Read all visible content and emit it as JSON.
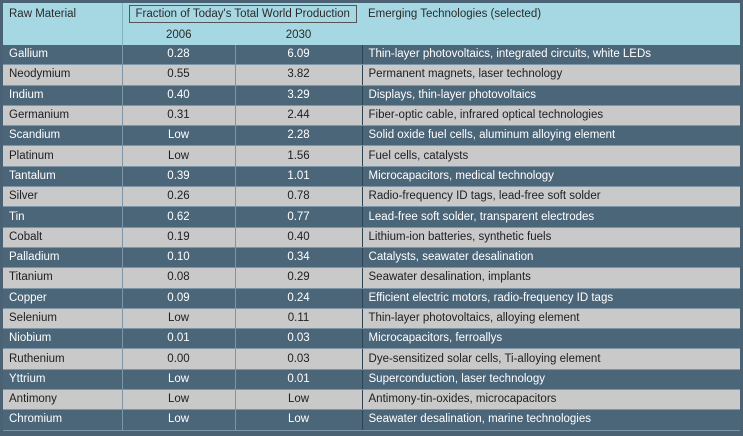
{
  "header": {
    "col_material": "Raw Material",
    "col_fraction": "Fraction of Today's Total World Production",
    "col_tech": "Emerging Technologies (selected)",
    "year_a": "2006",
    "year_b": "2030"
  },
  "rows": [
    {
      "material": "Gallium",
      "y2006": "0.28",
      "y2030": "6.09",
      "tech": "Thin-layer photovoltaics, integrated circuits, white LEDs"
    },
    {
      "material": "Neodymium",
      "y2006": "0.55",
      "y2030": "3.82",
      "tech": "Permanent magnets, laser technology"
    },
    {
      "material": "Indium",
      "y2006": "0.40",
      "y2030": "3.29",
      "tech": "Displays, thin-layer photovoltaics"
    },
    {
      "material": "Germanium",
      "y2006": "0.31",
      "y2030": "2.44",
      "tech": "Fiber-optic cable, infrared optical technologies"
    },
    {
      "material": "Scandium",
      "y2006": "Low",
      "y2030": "2.28",
      "tech": "Solid oxide fuel cells, aluminum alloying element"
    },
    {
      "material": "Platinum",
      "y2006": "Low",
      "y2030": "1.56",
      "tech": "Fuel cells, catalysts"
    },
    {
      "material": "Tantalum",
      "y2006": "0.39",
      "y2030": "1.01",
      "tech": "Microcapacitors, medical technology"
    },
    {
      "material": "Silver",
      "y2006": "0.26",
      "y2030": "0.78",
      "tech": "Radio-frequency ID tags, lead-free soft solder"
    },
    {
      "material": "Tin",
      "y2006": "0.62",
      "y2030": "0.77",
      "tech": "Lead-free soft solder, transparent electrodes"
    },
    {
      "material": "Cobalt",
      "y2006": "0.19",
      "y2030": "0.40",
      "tech": "Lithium-ion batteries, synthetic fuels"
    },
    {
      "material": "Palladium",
      "y2006": "0.10",
      "y2030": "0.34",
      "tech": "Catalysts, seawater desalination"
    },
    {
      "material": "Titanium",
      "y2006": "0.08",
      "y2030": "0.29",
      "tech": "Seawater desalination, implants"
    },
    {
      "material": "Copper",
      "y2006": "0.09",
      "y2030": "0.24",
      "tech": "Efficient electric motors, radio-frequency ID tags"
    },
    {
      "material": "Selenium",
      "y2006": "Low",
      "y2030": "0.11",
      "tech": "Thin-layer photovoltaics, alloying element"
    },
    {
      "material": "Niobium",
      "y2006": "0.01",
      "y2030": "0.03",
      "tech": "Microcapacitors, ferroallys"
    },
    {
      "material": "Ruthenium",
      "y2006": "0.00",
      "y2030": "0.03",
      "tech": "Dye-sensitized solar cells, Ti-alloying element"
    },
    {
      "material": "Yttrium",
      "y2006": "Low",
      "y2030": "0.01",
      "tech": "Superconduction, laser technology"
    },
    {
      "material": "Antimony",
      "y2006": "Low",
      "y2030": "Low",
      "tech": "Antimony-tin-oxides, microcapacitors"
    },
    {
      "material": "Chromium",
      "y2006": "Low",
      "y2030": "Low",
      "tech": "Seawater desalination, marine technologies"
    }
  ],
  "colors": {
    "header_bg": "#a6d8e4",
    "row_dark": "#4b6579",
    "row_light": "#c9c9c9"
  }
}
